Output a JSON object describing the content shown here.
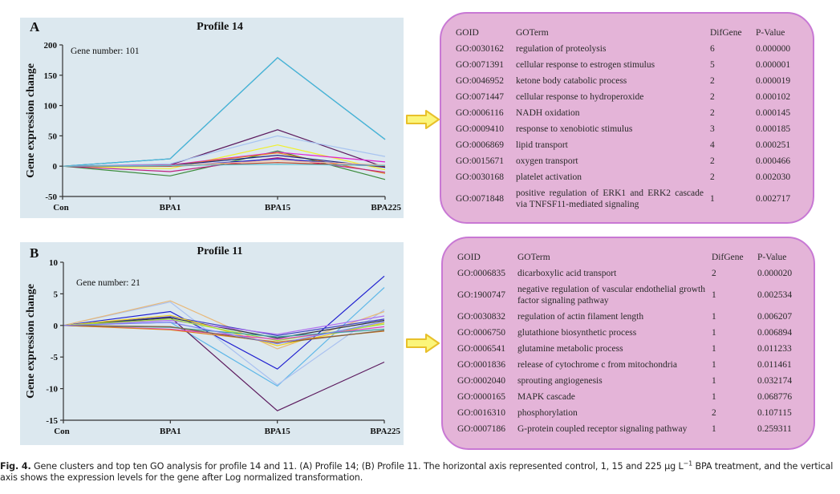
{
  "chart_data": [
    {
      "type": "line",
      "panel_letter": "A",
      "title": "Profile 14",
      "annotation": "Gene number: 101",
      "xlabel": "",
      "ylabel": "Gene expression change",
      "categories": [
        "Con",
        "BPA1",
        "BPA15",
        "BPA225"
      ],
      "ylim": [
        -50,
        200
      ],
      "yticks": [
        200,
        150,
        100,
        50,
        0,
        -50
      ],
      "grid": false,
      "series": [
        {
          "name": "s1",
          "color": "#5c2a6e",
          "values": [
            0,
            12,
            179,
            44
          ]
        },
        {
          "name": "s2",
          "color": "#3ec0e0",
          "values": [
            0,
            12,
            179,
            44
          ]
        },
        {
          "name": "s3",
          "color": "#5c1a5e",
          "values": [
            0,
            2,
            60,
            -2
          ]
        },
        {
          "name": "s4",
          "color": "#a8c4f0",
          "values": [
            0,
            4,
            50,
            16
          ]
        },
        {
          "name": "s5",
          "color": "#f0f028",
          "values": [
            0,
            -4,
            35,
            -6
          ]
        },
        {
          "name": "s6",
          "color": "#3a8a3a",
          "values": [
            0,
            -16,
            25,
            -22
          ]
        },
        {
          "name": "s7",
          "color": "#e020d0",
          "values": [
            0,
            2,
            23,
            7
          ]
        },
        {
          "name": "s8",
          "color": "#e08020",
          "values": [
            0,
            1,
            22,
            -12
          ]
        },
        {
          "name": "s9",
          "color": "#202080",
          "values": [
            0,
            1,
            18,
            -2
          ]
        },
        {
          "name": "s10",
          "color": "#c02080",
          "values": [
            0,
            -9,
            14,
            -10
          ]
        },
        {
          "name": "s11",
          "color": "#2020c0",
          "values": [
            0,
            0,
            12,
            0
          ]
        },
        {
          "name": "s12",
          "color": "#c04020",
          "values": [
            0,
            0,
            6,
            0
          ]
        },
        {
          "name": "s13",
          "color": "#f0c0a0",
          "values": [
            0,
            1,
            9,
            2
          ]
        },
        {
          "name": "s14",
          "color": "#60c0d0",
          "values": [
            0,
            1,
            3,
            1
          ]
        }
      ]
    },
    {
      "type": "line",
      "panel_letter": "B",
      "title": "Profile 11",
      "annotation": "Gene number: 21",
      "xlabel": "",
      "ylabel": "Gene expression change",
      "categories": [
        "Con",
        "BPA1",
        "BPA15",
        "BPA225"
      ],
      "ylim": [
        -15,
        10
      ],
      "yticks": [
        10,
        5,
        0,
        -5,
        -10,
        -15
      ],
      "grid": false,
      "series": [
        {
          "name": "s1",
          "color": "#2020d0",
          "values": [
            0,
            2.2,
            -6.9,
            7.8
          ]
        },
        {
          "name": "s2",
          "color": "#60b8e8",
          "values": [
            0,
            0.5,
            -9.6,
            6.0
          ]
        },
        {
          "name": "s3",
          "color": "#a8c0f0",
          "values": [
            0,
            3.7,
            -9.4,
            2.5
          ]
        },
        {
          "name": "s4",
          "color": "#e8b878",
          "values": [
            0,
            3.9,
            -3.7,
            2.2
          ]
        },
        {
          "name": "s5",
          "color": "#5c1a5e",
          "values": [
            0,
            1.3,
            -13.5,
            -5.8
          ]
        },
        {
          "name": "s6",
          "color": "#4040c0",
          "values": [
            0,
            1.4,
            -1.6,
            1.0
          ]
        },
        {
          "name": "s7",
          "color": "#303040",
          "values": [
            0,
            1.2,
            -2.0,
            0.8
          ]
        },
        {
          "name": "s8",
          "color": "#b070f0",
          "values": [
            0,
            0.8,
            -1.4,
            1.5
          ]
        },
        {
          "name": "s9",
          "color": "#f0d020",
          "values": [
            0,
            1.6,
            -3.2,
            0.4
          ]
        },
        {
          "name": "s10",
          "color": "#a0e040",
          "values": [
            0,
            1.0,
            -2.4,
            0.2
          ]
        },
        {
          "name": "s11",
          "color": "#e040c0",
          "values": [
            0,
            -0.6,
            -2.2,
            -0.2
          ]
        },
        {
          "name": "s12",
          "color": "#40a0a0",
          "values": [
            0,
            -0.3,
            -1.8,
            -0.6
          ]
        },
        {
          "name": "s13",
          "color": "#e08020",
          "values": [
            0,
            -0.7,
            -2.6,
            -0.9
          ]
        },
        {
          "name": "s14",
          "color": "#806040",
          "values": [
            0,
            -0.2,
            -2.8,
            -0.8
          ]
        },
        {
          "name": "s15",
          "color": "#8080f0",
          "values": [
            0,
            0.5,
            -2.9,
            0.6
          ]
        }
      ]
    }
  ],
  "go_tables": [
    {
      "headers": [
        "GOID",
        "GOTerm",
        "DifGene",
        "P-Value"
      ],
      "rows": [
        {
          "id": "GO:0030162",
          "term": "regulation of proteolysis",
          "dif": "6",
          "p": "0.000000"
        },
        {
          "id": "GO:0071391",
          "term": "cellular response to estrogen stimulus",
          "dif": "5",
          "p": "0.000001"
        },
        {
          "id": "GO:0046952",
          "term": "ketone body catabolic process",
          "dif": "2",
          "p": "0.000019"
        },
        {
          "id": "GO:0071447",
          "term": "cellular response to hydroperoxide",
          "dif": "2",
          "p": "0.000102"
        },
        {
          "id": "GO:0006116",
          "term": "NADH oxidation",
          "dif": "2",
          "p": "0.000145"
        },
        {
          "id": "GO:0009410",
          "term": "response to xenobiotic stimulus",
          "dif": "3",
          "p": "0.000185"
        },
        {
          "id": "GO:0006869",
          "term": "lipid transport",
          "dif": "4",
          "p": "0.000251"
        },
        {
          "id": "GO:0015671",
          "term": "oxygen transport",
          "dif": "2",
          "p": "0.000466"
        },
        {
          "id": "GO:0030168",
          "term": "platelet activation",
          "dif": "2",
          "p": "0.002030"
        },
        {
          "id": "GO:0071848",
          "term": "positive regulation of ERK1 and ERK2 cascade via TNFSF11-mediated signaling",
          "dif": "1",
          "p": "0.002717"
        }
      ]
    },
    {
      "headers": [
        "GOID",
        "GOTerm",
        "DifGene",
        "P-Value"
      ],
      "rows": [
        {
          "id": "GO:0006835",
          "term": "dicarboxylic acid transport",
          "dif": "2",
          "p": "0.000020"
        },
        {
          "id": "GO:1900747",
          "term": "negative regulation of vascular endothelial growth factor signaling pathway",
          "dif": "1",
          "p": "0.002534"
        },
        {
          "id": "GO:0030832",
          "term": "regulation of actin filament length",
          "dif": "1",
          "p": "0.006207"
        },
        {
          "id": "GO:0006750",
          "term": "glutathione biosynthetic process",
          "dif": "1",
          "p": "0.006894"
        },
        {
          "id": "GO:0006541",
          "term": "glutamine metabolic process",
          "dif": "1",
          "p": "0.011233"
        },
        {
          "id": "GO:0001836",
          "term": "release of cytochrome c from mitochondria",
          "dif": "1",
          "p": "0.011461"
        },
        {
          "id": "GO:0002040",
          "term": "sprouting angiogenesis",
          "dif": "1",
          "p": "0.032174"
        },
        {
          "id": "GO:0000165",
          "term": "MAPK cascade",
          "dif": "1",
          "p": "0.068776"
        },
        {
          "id": "GO:0016310",
          "term": "phosphorylation",
          "dif": "2",
          "p": "0.107115"
        },
        {
          "id": "GO:0007186",
          "term": "G-protein coupled receptor signaling pathway",
          "dif": "1",
          "p": "0.259311"
        }
      ]
    }
  ],
  "caption": {
    "label": "Fig. 4.",
    "text_1": " Gene clusters and top ten GO analysis for profile 14 and 11. (A) Profile 14; (B) Profile 11. The horizontal axis represented control, 1, 15 and 225 μg L",
    "sup": "−1",
    "text_2": " BPA treatment, and the vertical axis shows the expression levels for the gene after Log normalized transformation."
  },
  "colors": {
    "panel_bg": "#dce8ef",
    "go_box_bg": "#e4b4d8",
    "go_box_border": "#c878d4",
    "arrow_fill": "#fbf57a",
    "arrow_stroke": "#e8c02a"
  }
}
